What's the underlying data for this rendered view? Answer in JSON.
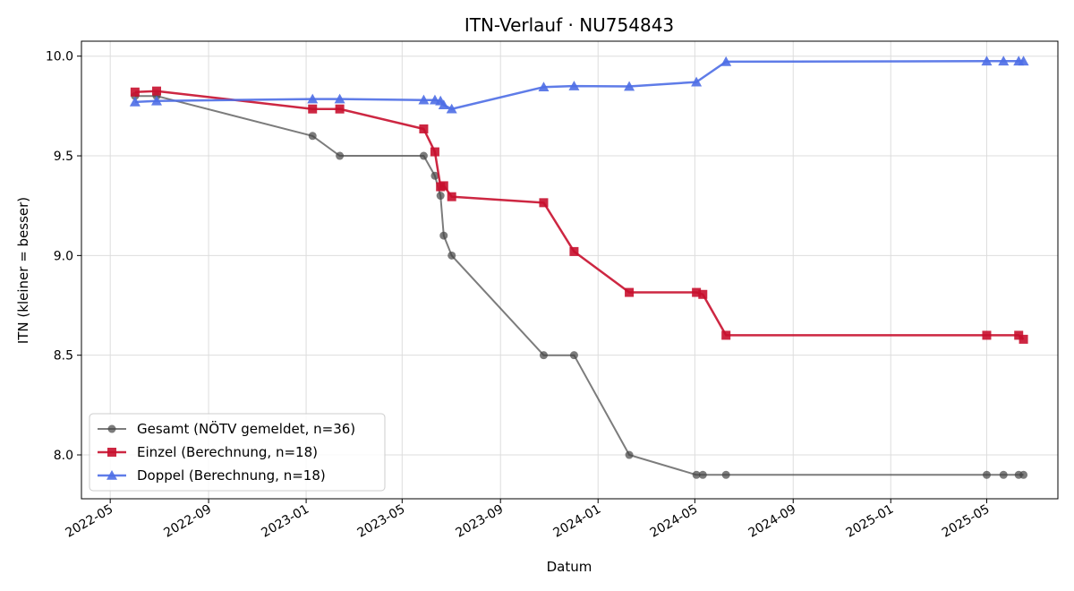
{
  "chart_data": {
    "type": "line",
    "title": "ITN-Verlauf · NU754843",
    "xlabel": "Datum",
    "ylabel": "ITN  (kleiner = besser)",
    "x_type": "date",
    "xlim": [
      "2022-03-26",
      "2025-07-29"
    ],
    "ylim": [
      7.78,
      10.075
    ],
    "x_ticks": [
      "2022-05-01",
      "2022-09-01",
      "2023-01-01",
      "2023-05-01",
      "2023-09-01",
      "2024-01-01",
      "2024-05-01",
      "2024-09-01",
      "2025-01-01",
      "2025-05-01"
    ],
    "x_tick_labels": [
      "2022-05",
      "2022-09",
      "2023-01",
      "2023-05",
      "2023-09",
      "2024-01",
      "2024-05",
      "2024-09",
      "2025-01",
      "2025-05"
    ],
    "y_ticks": [
      8.0,
      8.5,
      9.0,
      9.5,
      10.0
    ],
    "y_tick_labels": [
      "8.0",
      "8.5",
      "9.0",
      "9.5",
      "10.0"
    ],
    "grid": true,
    "legend_position": "bottom-left",
    "series": [
      {
        "name": "Gesamt (NÖTV gemeldet, n=36)",
        "color": "#444444",
        "marker": "circle",
        "points": [
          [
            "2022-06-01",
            9.8
          ],
          [
            "2022-06-28",
            9.8
          ],
          [
            "2023-01-09",
            9.6
          ],
          [
            "2023-02-12",
            9.5
          ],
          [
            "2023-05-28",
            9.5
          ],
          [
            "2023-06-11",
            9.4
          ],
          [
            "2023-06-18",
            9.3
          ],
          [
            "2023-06-22",
            9.1
          ],
          [
            "2023-07-02",
            9.0
          ],
          [
            "2023-10-25",
            8.5
          ],
          [
            "2023-12-02",
            8.5
          ],
          [
            "2024-02-09",
            8.0
          ],
          [
            "2024-05-03",
            7.9
          ],
          [
            "2024-05-11",
            7.9
          ],
          [
            "2024-06-09",
            7.9
          ],
          [
            "2025-05-01",
            7.9
          ],
          [
            "2025-05-22",
            7.9
          ],
          [
            "2025-06-10",
            7.9
          ],
          [
            "2025-06-16",
            7.9
          ]
        ]
      },
      {
        "name": "Einzel (Berechnung, n=18)",
        "color": "#c8102e",
        "marker": "square",
        "points": [
          [
            "2022-06-01",
            9.82
          ],
          [
            "2022-06-28",
            9.825
          ],
          [
            "2023-01-09",
            9.735
          ],
          [
            "2023-02-12",
            9.735
          ],
          [
            "2023-05-28",
            9.635
          ],
          [
            "2023-06-11",
            9.52
          ],
          [
            "2023-06-18",
            9.345
          ],
          [
            "2023-06-22",
            9.35
          ],
          [
            "2023-07-02",
            9.295
          ],
          [
            "2023-10-25",
            9.265
          ],
          [
            "2023-12-02",
            9.02
          ],
          [
            "2024-02-09",
            8.815
          ],
          [
            "2024-05-03",
            8.815
          ],
          [
            "2024-05-11",
            8.805
          ],
          [
            "2024-06-09",
            8.6
          ],
          [
            "2025-05-01",
            8.6
          ],
          [
            "2025-06-10",
            8.6
          ],
          [
            "2025-06-16",
            8.58
          ]
        ]
      },
      {
        "name": "Doppel (Berechnung, n=18)",
        "color": "#4e6ee6",
        "marker": "triangle",
        "points": [
          [
            "2022-06-01",
            9.77
          ],
          [
            "2022-06-28",
            9.775
          ],
          [
            "2023-01-09",
            9.785
          ],
          [
            "2023-02-12",
            9.785
          ],
          [
            "2023-05-28",
            9.78
          ],
          [
            "2023-06-11",
            9.78
          ],
          [
            "2023-06-18",
            9.775
          ],
          [
            "2023-06-22",
            9.755
          ],
          [
            "2023-07-02",
            9.735
          ],
          [
            "2023-10-25",
            9.845
          ],
          [
            "2023-12-02",
            9.85
          ],
          [
            "2024-02-09",
            9.848
          ],
          [
            "2024-05-03",
            9.87
          ],
          [
            "2024-06-09",
            9.972
          ],
          [
            "2025-05-01",
            9.975
          ],
          [
            "2025-05-22",
            9.975
          ],
          [
            "2025-06-10",
            9.975
          ],
          [
            "2025-06-16",
            9.975
          ]
        ]
      }
    ]
  }
}
